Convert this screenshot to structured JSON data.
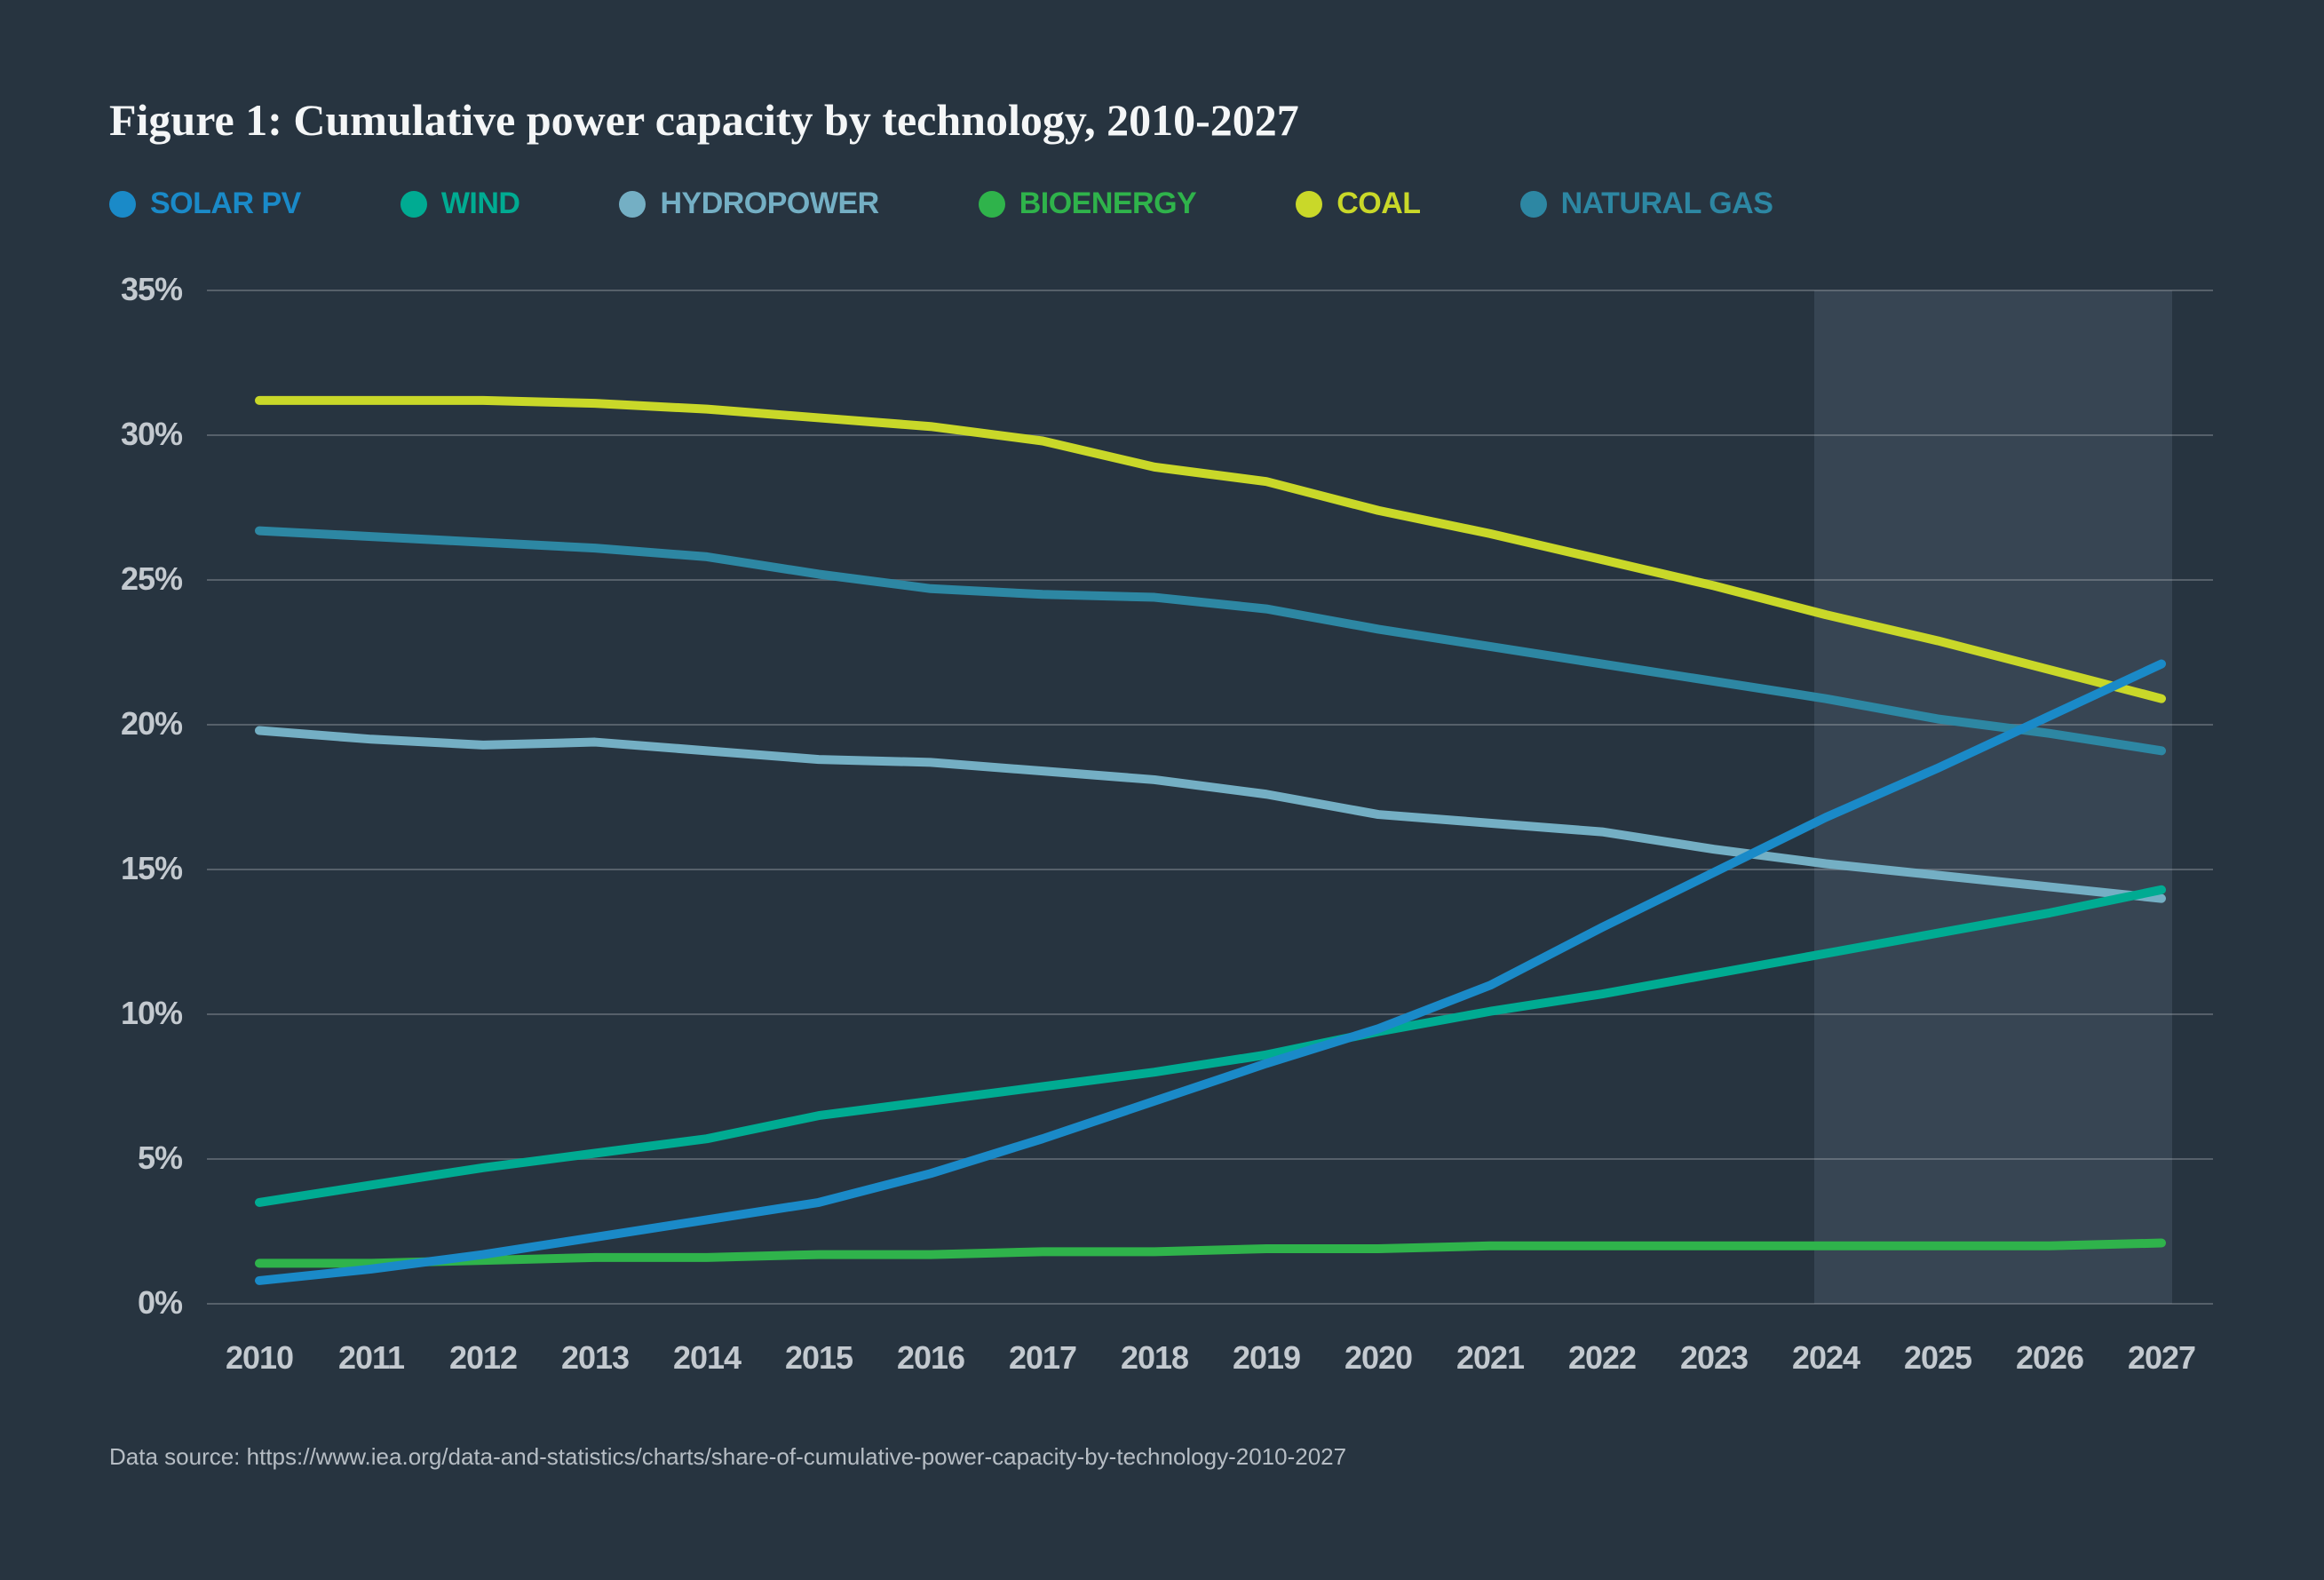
{
  "figure": {
    "source": "Data source: https://www.iea.org/data-and-statistics/charts/share-of-cumulative-power-capacity-by-technology-2010-2027"
  },
  "colors": {
    "background": "#273440",
    "forecast_band": "rgba(173,200,222,0.12)",
    "gridline": "rgba(255,255,255,0.22)",
    "title_text": "#f4f6f7",
    "axis_text": "#c3c9cf",
    "source_text": "#b6bdc4"
  },
  "chart_data": {
    "type": "line",
    "title": "Figure 1: Cumulative power capacity by technology, 2010-2027",
    "x": [
      2010,
      2011,
      2012,
      2013,
      2014,
      2015,
      2016,
      2017,
      2018,
      2019,
      2020,
      2021,
      2022,
      2023,
      2024,
      2025,
      2026,
      2027
    ],
    "ylim": [
      0,
      35
    ],
    "ytick_step": 5,
    "ytick_labels": [
      "35%",
      "30%",
      "25%",
      "20%",
      "15%",
      "10%",
      "5%",
      "0%"
    ],
    "grid": "horizontal",
    "legend_position": "top",
    "forecast_band": {
      "from": 2024,
      "to": 2027
    },
    "series": [
      {
        "name": "SOLAR PV",
        "color": "#1a8ac8",
        "values": [
          0.8,
          1.2,
          1.7,
          2.3,
          2.9,
          3.5,
          4.5,
          5.7,
          7.0,
          8.3,
          9.5,
          11.0,
          13.0,
          14.9,
          16.8,
          18.5,
          20.3,
          22.1
        ]
      },
      {
        "name": "WIND",
        "color": "#00ab92",
        "values": [
          3.5,
          4.1,
          4.7,
          5.2,
          5.7,
          6.5,
          7.0,
          7.5,
          8.0,
          8.6,
          9.4,
          10.1,
          10.7,
          11.4,
          12.1,
          12.8,
          13.5,
          14.3
        ]
      },
      {
        "name": "HYDROPOWER",
        "color": "#74afc4",
        "values": [
          19.8,
          19.5,
          19.3,
          19.4,
          19.1,
          18.8,
          18.7,
          18.4,
          18.1,
          17.6,
          16.9,
          16.6,
          16.3,
          15.7,
          15.2,
          14.8,
          14.4,
          14.0
        ]
      },
      {
        "name": "BIOENERGY",
        "color": "#2fb34b",
        "values": [
          1.4,
          1.4,
          1.5,
          1.6,
          1.6,
          1.7,
          1.7,
          1.8,
          1.8,
          1.9,
          1.9,
          2.0,
          2.0,
          2.0,
          2.0,
          2.0,
          2.0,
          2.1
        ]
      },
      {
        "name": "COAL",
        "color": "#c9d829",
        "values": [
          31.2,
          31.2,
          31.2,
          31.1,
          30.9,
          30.6,
          30.3,
          29.8,
          28.9,
          28.4,
          27.4,
          26.6,
          25.7,
          24.8,
          23.8,
          22.9,
          21.9,
          20.9
        ]
      },
      {
        "name": "NATURAL GAS",
        "color": "#2d87a3",
        "values": [
          26.7,
          26.5,
          26.3,
          26.1,
          25.8,
          25.2,
          24.7,
          24.5,
          24.4,
          24.0,
          23.3,
          22.7,
          22.1,
          21.5,
          20.9,
          20.2,
          19.7,
          19.1
        ]
      }
    ]
  }
}
